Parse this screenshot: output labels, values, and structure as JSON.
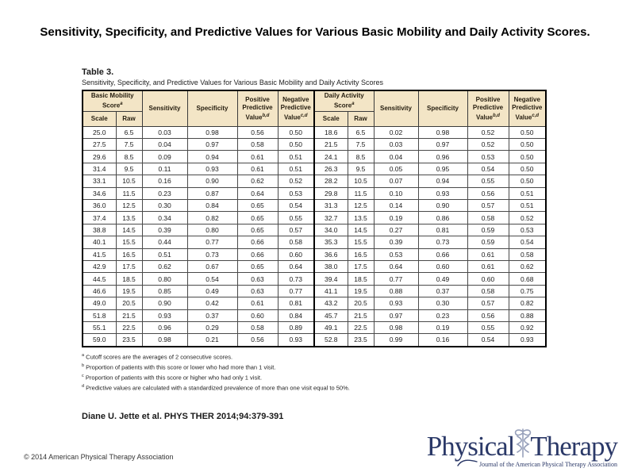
{
  "title": "Sensitivity, Specificity, and Predictive Values for Various Basic Mobility and Daily Activity Scores.",
  "table": {
    "label": "Table 3.",
    "caption": "Sensitivity, Specificity, and Predictive Values for Various Basic Mobility and Daily Activity Scores",
    "headers": {
      "basic_mobility": "Basic Mobility Score",
      "daily_activity": "Daily Activity Score",
      "score_sup": "a",
      "scale": "Scale",
      "raw": "Raw",
      "sensitivity": "Sensitivity",
      "specificity": "Specificity",
      "ppv": "Positive Predictive Value",
      "ppv_sup": "b,d",
      "npv": "Negative Predictive Value",
      "npv_sup": "c,d"
    },
    "rows": [
      [
        "25.0",
        "6.5",
        "0.03",
        "0.98",
        "0.56",
        "0.50",
        "18.6",
        "6.5",
        "0.02",
        "0.98",
        "0.52",
        "0.50"
      ],
      [
        "27.5",
        "7.5",
        "0.04",
        "0.97",
        "0.58",
        "0.50",
        "21.5",
        "7.5",
        "0.03",
        "0.97",
        "0.52",
        "0.50"
      ],
      [
        "29.6",
        "8.5",
        "0.09",
        "0.94",
        "0.61",
        "0.51",
        "24.1",
        "8.5",
        "0.04",
        "0.96",
        "0.53",
        "0.50"
      ],
      [
        "31.4",
        "9.5",
        "0.11",
        "0.93",
        "0.61",
        "0.51",
        "26.3",
        "9.5",
        "0.05",
        "0.95",
        "0.54",
        "0.50"
      ],
      [
        "33.1",
        "10.5",
        "0.16",
        "0.90",
        "0.62",
        "0.52",
        "28.2",
        "10.5",
        "0.07",
        "0.94",
        "0.55",
        "0.50"
      ],
      [
        "34.6",
        "11.5",
        "0.23",
        "0.87",
        "0.64",
        "0.53",
        "29.8",
        "11.5",
        "0.10",
        "0.93",
        "0.56",
        "0.51"
      ],
      [
        "36.0",
        "12.5",
        "0.30",
        "0.84",
        "0.65",
        "0.54",
        "31.3",
        "12.5",
        "0.14",
        "0.90",
        "0.57",
        "0.51"
      ],
      [
        "37.4",
        "13.5",
        "0.34",
        "0.82",
        "0.65",
        "0.55",
        "32.7",
        "13.5",
        "0.19",
        "0.86",
        "0.58",
        "0.52"
      ],
      [
        "38.8",
        "14.5",
        "0.39",
        "0.80",
        "0.65",
        "0.57",
        "34.0",
        "14.5",
        "0.27",
        "0.81",
        "0.59",
        "0.53"
      ],
      [
        "40.1",
        "15.5",
        "0.44",
        "0.77",
        "0.66",
        "0.58",
        "35.3",
        "15.5",
        "0.39",
        "0.73",
        "0.59",
        "0.54"
      ],
      [
        "41.5",
        "16.5",
        "0.51",
        "0.73",
        "0.66",
        "0.60",
        "36.6",
        "16.5",
        "0.53",
        "0.66",
        "0.61",
        "0.58"
      ],
      [
        "42.9",
        "17.5",
        "0.62",
        "0.67",
        "0.65",
        "0.64",
        "38.0",
        "17.5",
        "0.64",
        "0.60",
        "0.61",
        "0.62"
      ],
      [
        "44.5",
        "18.5",
        "0.80",
        "0.54",
        "0.63",
        "0.73",
        "39.4",
        "18.5",
        "0.77",
        "0.49",
        "0.60",
        "0.68"
      ],
      [
        "46.6",
        "19.5",
        "0.85",
        "0.49",
        "0.63",
        "0.77",
        "41.1",
        "19.5",
        "0.88",
        "0.37",
        "0.58",
        "0.75"
      ],
      [
        "49.0",
        "20.5",
        "0.90",
        "0.42",
        "0.61",
        "0.81",
        "43.2",
        "20.5",
        "0.93",
        "0.30",
        "0.57",
        "0.82"
      ],
      [
        "51.8",
        "21.5",
        "0.93",
        "0.37",
        "0.60",
        "0.84",
        "45.7",
        "21.5",
        "0.97",
        "0.23",
        "0.56",
        "0.88"
      ],
      [
        "55.1",
        "22.5",
        "0.96",
        "0.29",
        "0.58",
        "0.89",
        "49.1",
        "22.5",
        "0.98",
        "0.19",
        "0.55",
        "0.92"
      ],
      [
        "59.0",
        "23.5",
        "0.98",
        "0.21",
        "0.56",
        "0.93",
        "52.8",
        "23.5",
        "0.99",
        "0.16",
        "0.54",
        "0.93"
      ]
    ]
  },
  "footnotes": [
    {
      "marker": "a",
      "text": "Cutoff scores are the averages of 2 consecutive scores."
    },
    {
      "marker": "b",
      "text": "Proportion of patients with this score or lower who had more than 1 visit."
    },
    {
      "marker": "c",
      "text": "Proportion of patients with this score or higher who had only 1 visit."
    },
    {
      "marker": "d",
      "text": "Predictive values are calculated with a standardized prevalence of more than one visit equal to 50%."
    }
  ],
  "citation": "Diane U. Jette et al. PHYS THER 2014;94:379-391",
  "copyright": "© 2014 American Physical Therapy Association",
  "logo": {
    "word1": "Physical",
    "word2": "Therapy",
    "tagline": "Journal of the American Physical Therapy Association"
  },
  "colors": {
    "logo_navy": "#2b3968",
    "table_header_beige": "#f3e5c6",
    "border_black": "#000000"
  }
}
